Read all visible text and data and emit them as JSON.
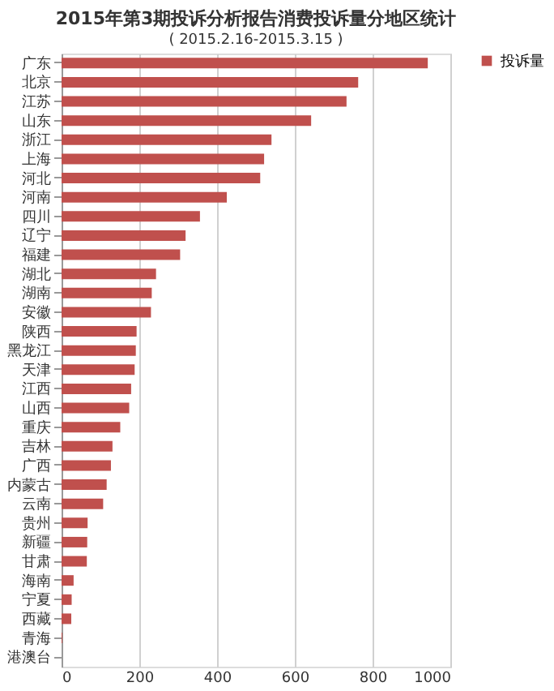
{
  "chart_data": {
    "type": "bar",
    "orientation": "horizontal",
    "title": "2015年第3期投诉分析报告消费投诉量分地区统计",
    "subtitle": "( 2015.2.16-2015.3.15 )",
    "categories": [
      "广东",
      "北京",
      "江苏",
      "山东",
      "浙江",
      "上海",
      "河北",
      "河南",
      "四川",
      "辽宁",
      "福建",
      "湖北",
      "湖南",
      "安徽",
      "陕西",
      "黑龙江",
      "天津",
      "江西",
      "山西",
      "重庆",
      "吉林",
      "广西",
      "内蒙古",
      "云南",
      "贵州",
      "新疆",
      "甘肃",
      "海南",
      "宁夏",
      "西藏",
      "青海",
      "港澳台"
    ],
    "series": [
      {
        "name": "投诉量",
        "color": "#c0504d",
        "values": [
          942,
          763,
          733,
          642,
          540,
          521,
          511,
          425,
          356,
          319,
          305,
          243,
          232,
          230,
          193,
          191,
          188,
          179,
          174,
          151,
          131,
          127,
          116,
          107,
          67,
          66,
          65,
          31,
          26,
          25,
          2,
          0
        ]
      }
    ],
    "xlim": [
      0,
      1000
    ],
    "xticks": [
      0,
      200,
      400,
      600,
      800,
      1000
    ],
    "grid": "x",
    "legend": "right"
  }
}
